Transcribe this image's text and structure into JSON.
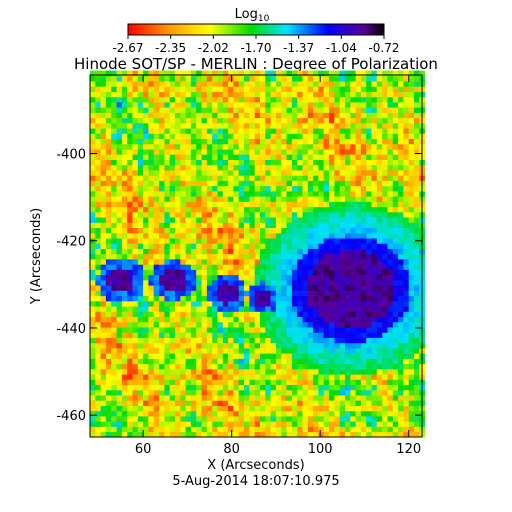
{
  "chart_data": {
    "type": "heatmap",
    "title": "Hinode SOT/SP - MERLIN : Degree of Polarization",
    "xlabel": "X (Arcseconds)",
    "ylabel": "Y (Arcseconds)",
    "timestamp": "5-Aug-2014 18:07:10.975",
    "xlim": [
      48,
      123
    ],
    "ylim": [
      -465,
      -382
    ],
    "x_ticks": [
      60,
      80,
      100,
      120
    ],
    "y_ticks": [
      -400,
      -420,
      -440,
      -460
    ],
    "colorbar": {
      "label_base": "Log",
      "label_sub": "10",
      "range": [
        -2.67,
        -0.72
      ],
      "tick_labels": [
        "-2.67",
        "-2.35",
        "-2.02",
        "-1.70",
        "-1.37",
        "-1.04",
        "-0.72"
      ]
    },
    "features": [
      {
        "name": "sunspot",
        "x": 107,
        "y": -431,
        "rx": 10,
        "ry": 9
      },
      {
        "name": "pore",
        "x": 55,
        "y": -429,
        "rx": 3,
        "ry": 3
      },
      {
        "name": "pore",
        "x": 67,
        "y": -429,
        "rx": 3,
        "ry": 2.5
      },
      {
        "name": "pore",
        "x": 79,
        "y": -432,
        "rx": 2.5,
        "ry": 2.5
      },
      {
        "name": "pore",
        "x": 87,
        "y": -433,
        "rx": 2,
        "ry": 2
      }
    ]
  }
}
